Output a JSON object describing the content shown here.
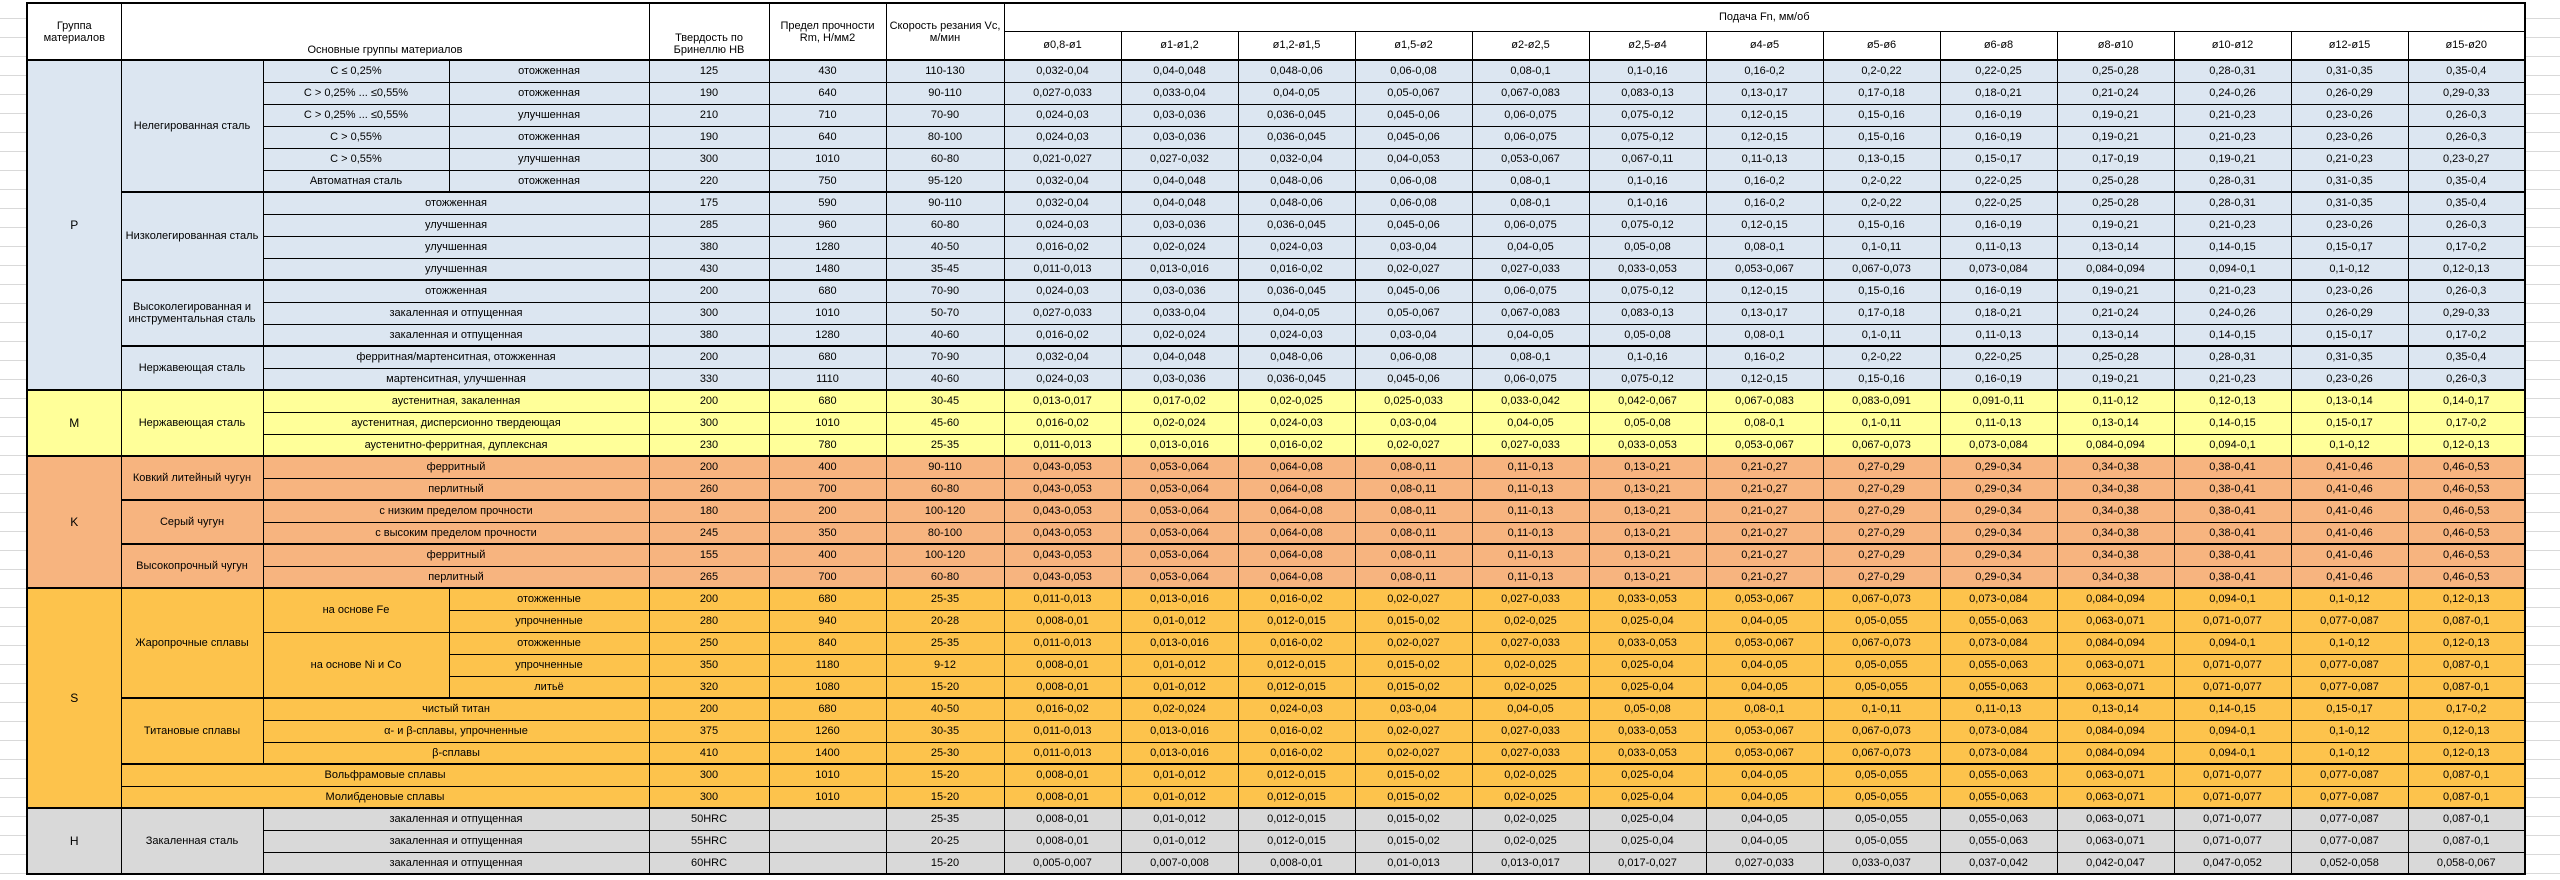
{
  "header": {
    "col_group": "Группа материалов",
    "col_main": "Основные группы материалов",
    "col_hb": "Твердость по Бринеллю HB",
    "col_rm": "Предел прочности Rm, Н/мм2",
    "col_vc": "Скорость резания Vc, м/мин",
    "col_feed": "Подача Fn, мм/об",
    "diameters": [
      "ø0,8-ø1",
      "ø1-ø1,2",
      "ø1,2-ø1,5",
      "ø1,5-ø2",
      "ø2-ø2,5",
      "ø2,5-ø4",
      "ø4-ø5",
      "ø5-ø6",
      "ø6-ø8",
      "ø8-ø10",
      "ø10-ø12",
      "ø12-ø15",
      "ø15-ø20"
    ]
  },
  "colors": {
    "P": "#dce6f1",
    "M": "#ffff99",
    "K": "#f7b47f",
    "S": "#fdc34c",
    "H": "#d9d9d9"
  },
  "feed_patterns": {
    "A": [
      "0,032-0,04",
      "0,04-0,048",
      "0,048-0,06",
      "0,06-0,08",
      "0,08-0,1",
      "0,1-0,16",
      "0,16-0,2",
      "0,2-0,22",
      "0,22-0,25",
      "0,25-0,28",
      "0,28-0,31",
      "0,31-0,35",
      "0,35-0,4"
    ],
    "B": [
      "0,027-0,033",
      "0,033-0,04",
      "0,04-0,05",
      "0,05-0,067",
      "0,067-0,083",
      "0,083-0,13",
      "0,13-0,17",
      "0,17-0,18",
      "0,18-0,21",
      "0,21-0,24",
      "0,24-0,26",
      "0,26-0,29",
      "0,29-0,33"
    ],
    "C": [
      "0,024-0,03",
      "0,03-0,036",
      "0,036-0,045",
      "0,045-0,06",
      "0,06-0,075",
      "0,075-0,12",
      "0,12-0,15",
      "0,15-0,16",
      "0,16-0,19",
      "0,19-0,21",
      "0,21-0,23",
      "0,23-0,26",
      "0,26-0,3"
    ],
    "D": [
      "0,021-0,027",
      "0,027-0,032",
      "0,032-0,04",
      "0,04-0,053",
      "0,053-0,067",
      "0,067-0,11",
      "0,11-0,13",
      "0,13-0,15",
      "0,15-0,17",
      "0,17-0,19",
      "0,19-0,21",
      "0,21-0,23",
      "0,23-0,27"
    ],
    "E": [
      "0,016-0,02",
      "0,02-0,024",
      "0,024-0,03",
      "0,03-0,04",
      "0,04-0,05",
      "0,05-0,08",
      "0,08-0,1",
      "0,1-0,11",
      "0,11-0,13",
      "0,13-0,14",
      "0,14-0,15",
      "0,15-0,17",
      "0,17-0,2"
    ],
    "F": [
      "0,011-0,013",
      "0,013-0,016",
      "0,016-0,02",
      "0,02-0,027",
      "0,027-0,033",
      "0,033-0,053",
      "0,053-0,067",
      "0,067-0,073",
      "0,073-0,084",
      "0,084-0,094",
      "0,094-0,1",
      "0,1-0,12",
      "0,12-0,13"
    ],
    "G": [
      "0,013-0,017",
      "0,017-0,02",
      "0,02-0,025",
      "0,025-0,033",
      "0,033-0,042",
      "0,042-0,067",
      "0,067-0,083",
      "0,083-0,091",
      "0,091-0,11",
      "0,11-0,12",
      "0,12-0,13",
      "0,13-0,14",
      "0,14-0,17"
    ],
    "K": [
      "0,043-0,053",
      "0,053-0,064",
      "0,064-0,08",
      "0,08-0,11",
      "0,11-0,13",
      "0,13-0,21",
      "0,21-0,27",
      "0,27-0,29",
      "0,29-0,34",
      "0,34-0,38",
      "0,38-0,41",
      "0,41-0,46",
      "0,46-0,53"
    ],
    "H8": [
      "0,008-0,01",
      "0,01-0,012",
      "0,012-0,015",
      "0,015-0,02",
      "0,02-0,025",
      "0,025-0,04",
      "0,04-0,05",
      "0,05-0,055",
      "0,055-0,063",
      "0,063-0,071",
      "0,071-0,077",
      "0,077-0,087",
      "0,087-0,1"
    ],
    "I": [
      "0,005-0,007",
      "0,007-0,008",
      "0,008-0,01",
      "0,01-0,013",
      "0,013-0,017",
      "0,017-0,027",
      "0,027-0,033",
      "0,033-0,037",
      "0,037-0,042",
      "0,042-0,047",
      "0,047-0,052",
      "0,052-0,058",
      "0,058-0,067"
    ]
  },
  "rows": [
    {
      "g": "P",
      "top": true,
      "feed": "A",
      "cells": [
        {
          "t": "P",
          "rs": 15,
          "n": "group-letter",
          "cls": "letter"
        },
        {
          "t": "Нелегированная сталь",
          "rs": 6,
          "n": "material-family"
        },
        {
          "t": "C ≤ 0,25%"
        },
        {
          "t": "отожженная"
        },
        {
          "t": "125"
        },
        {
          "t": "430"
        },
        {
          "t": "110-130"
        }
      ]
    },
    {
      "g": "P",
      "feed": "B",
      "cells": [
        {
          "t": "С > 0,25% ... ≤0,55%"
        },
        {
          "t": "отожженная"
        },
        {
          "t": "190"
        },
        {
          "t": "640"
        },
        {
          "t": "90-110"
        }
      ]
    },
    {
      "g": "P",
      "feed": "C",
      "cells": [
        {
          "t": "С > 0,25% ... ≤0,55%"
        },
        {
          "t": "улучшенная"
        },
        {
          "t": "210"
        },
        {
          "t": "710"
        },
        {
          "t": "70-90"
        }
      ]
    },
    {
      "g": "P",
      "feed": "C",
      "cells": [
        {
          "t": "C > 0,55%"
        },
        {
          "t": "отожженная"
        },
        {
          "t": "190"
        },
        {
          "t": "640"
        },
        {
          "t": "80-100"
        }
      ]
    },
    {
      "g": "P",
      "feed": "D",
      "cells": [
        {
          "t": "C > 0,55%"
        },
        {
          "t": "улучшенная"
        },
        {
          "t": "300"
        },
        {
          "t": "1010"
        },
        {
          "t": "60-80"
        }
      ]
    },
    {
      "g": "P",
      "feed": "A",
      "cells": [
        {
          "t": "Автоматная сталь"
        },
        {
          "t": "отожженная"
        },
        {
          "t": "220"
        },
        {
          "t": "750"
        },
        {
          "t": "95-120"
        }
      ]
    },
    {
      "g": "P",
      "top": true,
      "feed": "A",
      "cells": [
        {
          "t": "Низколегированная сталь",
          "rs": 4,
          "n": "material-family"
        },
        {
          "t": "отожженная",
          "cs": 2
        },
        {
          "t": "175"
        },
        {
          "t": "590"
        },
        {
          "t": "90-110"
        }
      ]
    },
    {
      "g": "P",
      "feed": "C",
      "cells": [
        {
          "t": "улучшенная",
          "cs": 2
        },
        {
          "t": "285"
        },
        {
          "t": "960"
        },
        {
          "t": "60-80"
        }
      ]
    },
    {
      "g": "P",
      "feed": "E",
      "cells": [
        {
          "t": "улучшенная",
          "cs": 2
        },
        {
          "t": "380"
        },
        {
          "t": "1280"
        },
        {
          "t": "40-50"
        }
      ]
    },
    {
      "g": "P",
      "feed": "F",
      "cells": [
        {
          "t": "улучшенная",
          "cs": 2
        },
        {
          "t": "430"
        },
        {
          "t": "1480"
        },
        {
          "t": "35-45"
        }
      ]
    },
    {
      "g": "P",
      "top": true,
      "feed": "C",
      "cells": [
        {
          "t": "Высоколегированная и инструментальная сталь",
          "rs": 3,
          "n": "material-family"
        },
        {
          "t": "отожженная",
          "cs": 2
        },
        {
          "t": "200"
        },
        {
          "t": "680"
        },
        {
          "t": "70-90"
        }
      ]
    },
    {
      "g": "P",
      "feed": "B",
      "cells": [
        {
          "t": "закаленная и отпущенная",
          "cs": 2
        },
        {
          "t": "300"
        },
        {
          "t": "1010"
        },
        {
          "t": "50-70"
        }
      ]
    },
    {
      "g": "P",
      "feed": "E",
      "cells": [
        {
          "t": "закаленная и отпущенная",
          "cs": 2
        },
        {
          "t": "380"
        },
        {
          "t": "1280"
        },
        {
          "t": "40-60"
        }
      ]
    },
    {
      "g": "P",
      "top": true,
      "feed": "A",
      "cells": [
        {
          "t": "Нержавеющая сталь",
          "rs": 2,
          "n": "material-family"
        },
        {
          "t": "ферритная/мартенситная, отожженная",
          "cs": 2
        },
        {
          "t": "200"
        },
        {
          "t": "680"
        },
        {
          "t": "70-90"
        }
      ]
    },
    {
      "g": "P",
      "feed": "C",
      "cells": [
        {
          "t": "мартенситная, улучшенная",
          "cs": 2
        },
        {
          "t": "330"
        },
        {
          "t": "1110"
        },
        {
          "t": "40-60"
        }
      ]
    },
    {
      "g": "M",
      "top": true,
      "feed": "G",
      "cells": [
        {
          "t": "M",
          "rs": 3,
          "n": "group-letter",
          "cls": "letter"
        },
        {
          "t": "Нержавеющая сталь",
          "rs": 3,
          "n": "material-family"
        },
        {
          "t": "аустенитная, закаленная",
          "cs": 2
        },
        {
          "t": "200"
        },
        {
          "t": "680"
        },
        {
          "t": "30-45"
        }
      ]
    },
    {
      "g": "M",
      "feed": "E",
      "cells": [
        {
          "t": "аустенитная, дисперсионно твердеющая",
          "cs": 2
        },
        {
          "t": "300"
        },
        {
          "t": "1010"
        },
        {
          "t": "45-60"
        }
      ]
    },
    {
      "g": "M",
      "feed": "F",
      "cells": [
        {
          "t": "аустенитно-ферритная, дуплексная",
          "cs": 2
        },
        {
          "t": "230"
        },
        {
          "t": "780"
        },
        {
          "t": "25-35"
        }
      ]
    },
    {
      "g": "K",
      "top": true,
      "feed": "K",
      "cells": [
        {
          "t": "K",
          "rs": 6,
          "n": "group-letter",
          "cls": "letter"
        },
        {
          "t": "Ковкий литейный чугун",
          "rs": 2,
          "n": "material-family"
        },
        {
          "t": "ферритный",
          "cs": 2
        },
        {
          "t": "200"
        },
        {
          "t": "400"
        },
        {
          "t": "90-110"
        }
      ]
    },
    {
      "g": "K",
      "feed": "K",
      "cells": [
        {
          "t": "перлитный",
          "cs": 2
        },
        {
          "t": "260"
        },
        {
          "t": "700"
        },
        {
          "t": "60-80"
        }
      ]
    },
    {
      "g": "K",
      "top": true,
      "feed": "K",
      "cells": [
        {
          "t": "Серый чугун",
          "rs": 2,
          "n": "material-family"
        },
        {
          "t": "с низким пределом прочности",
          "cs": 2
        },
        {
          "t": "180"
        },
        {
          "t": "200"
        },
        {
          "t": "100-120"
        }
      ]
    },
    {
      "g": "K",
      "feed": "K",
      "cells": [
        {
          "t": "с высоким пределом прочности",
          "cs": 2
        },
        {
          "t": "245"
        },
        {
          "t": "350"
        },
        {
          "t": "80-100"
        }
      ]
    },
    {
      "g": "K",
      "top": true,
      "feed": "K",
      "cells": [
        {
          "t": "Высокопрочный чугун",
          "rs": 2,
          "n": "material-family"
        },
        {
          "t": "ферритный",
          "cs": 2
        },
        {
          "t": "155"
        },
        {
          "t": "400"
        },
        {
          "t": "100-120"
        }
      ]
    },
    {
      "g": "K",
      "feed": "K",
      "cells": [
        {
          "t": "перлитный",
          "cs": 2
        },
        {
          "t": "265"
        },
        {
          "t": "700"
        },
        {
          "t": "60-80"
        }
      ]
    },
    {
      "g": "S",
      "top": true,
      "feed": "F",
      "cells": [
        {
          "t": "S",
          "rs": 10,
          "n": "group-letter",
          "cls": "letter"
        },
        {
          "t": "Жаропрочные сплавы",
          "rs": 5,
          "n": "material-family"
        },
        {
          "t": "на основе Fe",
          "rs": 2
        },
        {
          "t": "отожженные"
        },
        {
          "t": "200"
        },
        {
          "t": "680"
        },
        {
          "t": "25-35"
        }
      ]
    },
    {
      "g": "S",
      "feed": "H8",
      "cells": [
        {
          "t": "упрочненные"
        },
        {
          "t": "280"
        },
        {
          "t": "940"
        },
        {
          "t": "20-28"
        }
      ]
    },
    {
      "g": "S",
      "feed": "F",
      "cells": [
        {
          "t": "на основе Ni и Co",
          "rs": 3
        },
        {
          "t": "отожженные"
        },
        {
          "t": "250"
        },
        {
          "t": "840"
        },
        {
          "t": "25-35"
        }
      ]
    },
    {
      "g": "S",
      "feed": "H8",
      "cells": [
        {
          "t": "упрочненные"
        },
        {
          "t": "350"
        },
        {
          "t": "1180"
        },
        {
          "t": "9-12"
        }
      ]
    },
    {
      "g": "S",
      "feed": "H8",
      "cells": [
        {
          "t": "литьё"
        },
        {
          "t": "320"
        },
        {
          "t": "1080"
        },
        {
          "t": "15-20"
        }
      ]
    },
    {
      "g": "S",
      "top": true,
      "feed": "E",
      "cells": [
        {
          "t": "Титановые сплавы",
          "rs": 3,
          "n": "material-family"
        },
        {
          "t": "чистый титан",
          "cs": 2
        },
        {
          "t": "200"
        },
        {
          "t": "680"
        },
        {
          "t": "40-50"
        }
      ]
    },
    {
      "g": "S",
      "feed": "F",
      "cells": [
        {
          "t": "α- и β-сплавы, упрочненные",
          "cs": 2
        },
        {
          "t": "375"
        },
        {
          "t": "1260"
        },
        {
          "t": "30-35"
        }
      ]
    },
    {
      "g": "S",
      "feed": "F",
      "cells": [
        {
          "t": "β-сплавы",
          "cs": 2
        },
        {
          "t": "410"
        },
        {
          "t": "1400"
        },
        {
          "t": "25-30"
        }
      ]
    },
    {
      "g": "S",
      "top": true,
      "feed": "H8",
      "cells": [
        {
          "t": "Вольфрамовые сплавы",
          "cs": 3,
          "n": "material-family"
        },
        {
          "t": "300"
        },
        {
          "t": "1010"
        },
        {
          "t": "15-20"
        }
      ]
    },
    {
      "g": "S",
      "feed": "H8",
      "cells": [
        {
          "t": "Молибденовые сплавы",
          "cs": 3,
          "n": "material-family"
        },
        {
          "t": "300"
        },
        {
          "t": "1010"
        },
        {
          "t": "15-20"
        }
      ]
    },
    {
      "g": "H",
      "top": true,
      "feed": "H8",
      "cells": [
        {
          "t": "H",
          "rs": 3,
          "n": "group-letter",
          "cls": "letter"
        },
        {
          "t": "Закаленная сталь",
          "rs": 3,
          "n": "material-family"
        },
        {
          "t": "закаленная и отпущенная",
          "cs": 2
        },
        {
          "t": "50HRC"
        },
        {
          "t": ""
        },
        {
          "t": "25-35"
        }
      ]
    },
    {
      "g": "H",
      "feed": "H8",
      "cells": [
        {
          "t": "закаленная и отпущенная",
          "cs": 2
        },
        {
          "t": "55HRC"
        },
        {
          "t": ""
        },
        {
          "t": "20-25"
        }
      ]
    },
    {
      "g": "H",
      "feed": "I",
      "cells": [
        {
          "t": "закаленная и отпущенная",
          "cs": 2
        },
        {
          "t": "60HRC"
        },
        {
          "t": ""
        },
        {
          "t": "15-20"
        }
      ]
    }
  ]
}
